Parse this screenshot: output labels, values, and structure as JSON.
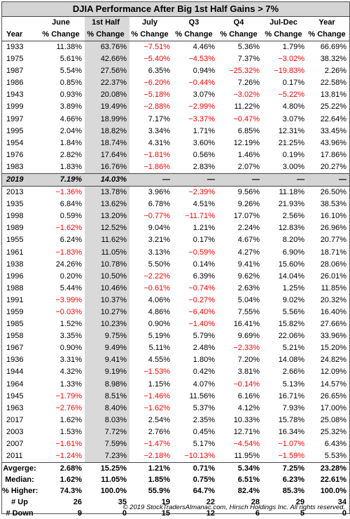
{
  "title": "DJIA Performance After Big 1st Half Gains > 7%",
  "header_top": [
    "",
    "June",
    "1st Half",
    "July",
    "Q3",
    "Q4",
    "Jul-Dec",
    "Year"
  ],
  "header_bottom": [
    "Year",
    "% Change",
    "% Change",
    "% Change",
    "% Change",
    "% Change",
    "% Change",
    "% Change"
  ],
  "rows_a": [
    [
      "1933",
      "11.38%",
      "63.76%",
      "−7.51%",
      "4.46%",
      "5.36%",
      "1.79%",
      "66.69%"
    ],
    [
      "1975",
      "5.61%",
      "42.66%",
      "−5.40%",
      "−4.53%",
      "7.37%",
      "−3.02%",
      "38.32%"
    ],
    [
      "1987",
      "5.54%",
      "27.56%",
      "6.35%",
      "0.94%",
      "−25.32%",
      "−19.83%",
      "2.26%"
    ],
    [
      "1986",
      "0.85%",
      "22.37%",
      "−6.20%",
      "−0.44%",
      "7.26%",
      "0.17%",
      "22.58%"
    ],
    [
      "1943",
      "0.93%",
      "20.08%",
      "−5.18%",
      "3.07%",
      "−3.02%",
      "−5.22%",
      "13.81%"
    ],
    [
      "1999",
      "3.89%",
      "19.49%",
      "−2.88%",
      "−2.99%",
      "11.22%",
      "4.80%",
      "25.22%"
    ],
    [
      "1997",
      "4.66%",
      "18.99%",
      "7.17%",
      "−3.37%",
      "−0.47%",
      "3.07%",
      "22.64%"
    ],
    [
      "1995",
      "2.04%",
      "18.82%",
      "3.34%",
      "1.71%",
      "6.85%",
      "12.31%",
      "33.45%"
    ],
    [
      "1954",
      "1.84%",
      "18.74%",
      "4.31%",
      "3.60%",
      "12.19%",
      "21.25%",
      "43.96%"
    ],
    [
      "1976",
      "2.82%",
      "17.64%",
      "−1.81%",
      "0.56%",
      "1.46%",
      "0.19%",
      "17.86%"
    ],
    [
      "1983",
      "1.83%",
      "16.76%",
      "−1.86%",
      "2.83%",
      "2.07%",
      "3.00%",
      "20.27%"
    ]
  ],
  "row_2019": [
    "2019",
    "7.19%",
    "14.03%",
    "—",
    "—",
    "—",
    "—",
    "—"
  ],
  "rows_b": [
    [
      "2013",
      "−1.36%",
      "13.78%",
      "3.96%",
      "−2.39%",
      "9.56%",
      "11.18%",
      "26.50%"
    ],
    [
      "1935",
      "6.84%",
      "13.62%",
      "6.78%",
      "4.51%",
      "9.26%",
      "21.93%",
      "38.53%"
    ],
    [
      "1998",
      "0.59%",
      "13.20%",
      "−0.77%",
      "−11.71%",
      "17.07%",
      "2.56%",
      "16.10%"
    ],
    [
      "1989",
      "−1.62%",
      "12.52%",
      "9.04%",
      "1.21%",
      "2.24%",
      "12.83%",
      "26.96%"
    ],
    [
      "1955",
      "6.24%",
      "11.62%",
      "3.21%",
      "0.17%",
      "4.67%",
      "8.20%",
      "20.77%"
    ],
    [
      "1961",
      "−1.83%",
      "11.05%",
      "3.13%",
      "−0.59%",
      "4.27%",
      "6.90%",
      "18.71%"
    ],
    [
      "1938",
      "24.26%",
      "10.78%",
      "5.50%",
      "0.14%",
      "9.41%",
      "15.60%",
      "28.06%"
    ],
    [
      "1996",
      "0.20%",
      "10.50%",
      "−2.22%",
      "6.39%",
      "9.62%",
      "14.04%",
      "26.01%"
    ],
    [
      "1988",
      "5.44%",
      "10.46%",
      "−0.61%",
      "−0.74%",
      "2.63%",
      "1.25%",
      "11.85%"
    ],
    [
      "1991",
      "−3.99%",
      "10.37%",
      "4.06%",
      "−0.27%",
      "5.04%",
      "9.02%",
      "20.32%"
    ],
    [
      "1959",
      "−0.03%",
      "10.27%",
      "4.86%",
      "−6.40%",
      "7.55%",
      "5.56%",
      "16.40%"
    ],
    [
      "1985",
      "1.52%",
      "10.23%",
      "0.90%",
      "−1.40%",
      "16.41%",
      "15.82%",
      "27.66%"
    ],
    [
      "1958",
      "3.35%",
      "9.75%",
      "5.19%",
      "5.79%",
      "9.69%",
      "22.06%",
      "33.96%"
    ],
    [
      "1967",
      "0.90%",
      "9.49%",
      "5.11%",
      "2.48%",
      "−2.33%",
      "5.21%",
      "15.20%"
    ],
    [
      "1936",
      "3.31%",
      "9.41%",
      "4.55%",
      "1.80%",
      "7.20%",
      "14.08%",
      "24.82%"
    ],
    [
      "1944",
      "4.32%",
      "9.19%",
      "−1.53%",
      "0.42%",
      "3.81%",
      "2.66%",
      "12.09%"
    ],
    [
      "1964",
      "1.33%",
      "8.98%",
      "1.15%",
      "4.07%",
      "−0.14%",
      "5.13%",
      "14.57%"
    ],
    [
      "1945",
      "−1.79%",
      "8.51%",
      "−1.46%",
      "11.56%",
      "6.16%",
      "16.71%",
      "26.65%"
    ],
    [
      "1963",
      "−2.76%",
      "8.40%",
      "−1.62%",
      "5.37%",
      "4.12%",
      "7.93%",
      "17.00%"
    ],
    [
      "2017",
      "1.62%",
      "8.03%",
      "2.54%",
      "2.35%",
      "10.33%",
      "15.78%",
      "25.08%"
    ],
    [
      "2003",
      "1.53%",
      "7.72%",
      "2.76%",
      "0.45%",
      "12.71%",
      "16.34%",
      "25.32%"
    ],
    [
      "2007",
      "−1.61%",
      "7.59%",
      "−1.47%",
      "5.17%",
      "−4.54%",
      "−1.07%",
      "6.43%"
    ],
    [
      "2011",
      "−1.24%",
      "7.23%",
      "−2.18%",
      "−10.13%",
      "11.95%",
      "−1.59%",
      "5.53%"
    ]
  ],
  "summary": [
    [
      "Avgerge:",
      "2.68%",
      "15.25%",
      "1.21%",
      "0.71%",
      "5.34%",
      "7.25%",
      "23.28%"
    ],
    [
      "Median:",
      "1.62%",
      "11.05%",
      "1.85%",
      "0.75%",
      "6.51%",
      "6.23%",
      "22.61%"
    ],
    [
      "% Higher:",
      "74.3%",
      "100.0%",
      "55.9%",
      "64.7%",
      "82.4%",
      "85.3%",
      "100.0%"
    ],
    [
      "# Up",
      "26",
      "35",
      "19",
      "22",
      "28",
      "29",
      "34"
    ],
    [
      "# Down",
      "9",
      "0",
      "15",
      "12",
      "6",
      "5",
      "0"
    ]
  ],
  "footer": "© 2019 StockTradersAlmanac.com, Hirsch Holdings Inc. All rights reserved."
}
